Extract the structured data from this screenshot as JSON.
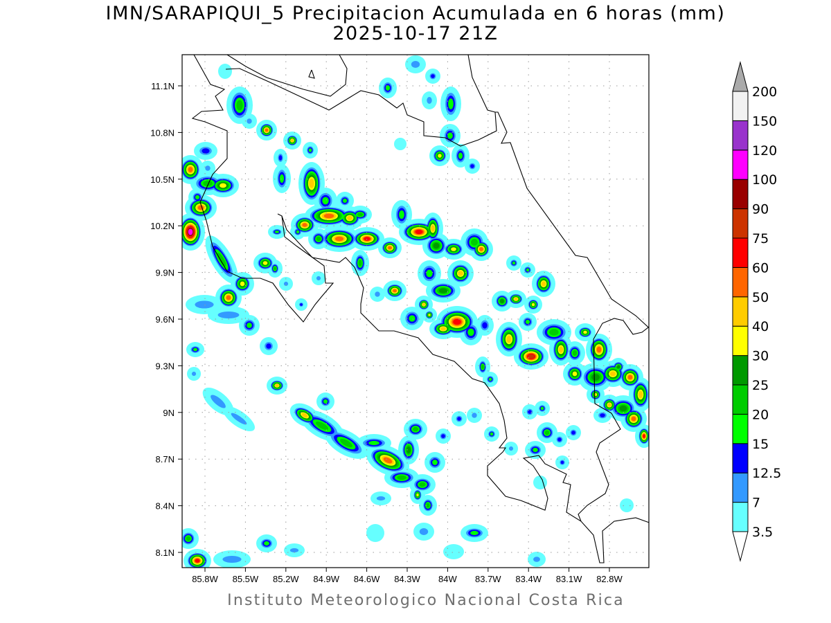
{
  "title": {
    "line1": "IMN/SARAPIQUI_5 Precipitacion Acumulada en 6 horas (mm)",
    "line2": "2025-10-17 21Z"
  },
  "footer": "Instituto Meteorologico Nacional Costa Rica",
  "map": {
    "lon_ticks": [
      "85.8W",
      "85.5W",
      "85.2W",
      "84.9W",
      "84.6W",
      "84.3W",
      "84W",
      "83.7W",
      "83.4W",
      "83.1W",
      "82.8W"
    ],
    "lat_ticks": [
      "11.1N",
      "10.8N",
      "10.5N",
      "10.2N",
      "9.9N",
      "9.6N",
      "9.3N",
      "9N",
      "8.7N",
      "8.4N",
      "8.1N"
    ]
  },
  "colorbar": {
    "units": "mm",
    "labels": [
      "3.5",
      "7",
      "12.5",
      "15",
      "20",
      "25",
      "30",
      "40",
      "50",
      "60",
      "75",
      "90",
      "100",
      "120",
      "150",
      "200"
    ],
    "colors": [
      "#66ffff",
      "#3399ff",
      "#0000ff",
      "#00ff00",
      "#00cc00",
      "#009900",
      "#ffff00",
      "#ffcc00",
      "#ff6600",
      "#ff0000",
      "#cc3300",
      "#990000",
      "#ff00ff",
      "#9933cc",
      "#f2f2f2"
    ],
    "over_color": "#aaaaaa",
    "under_color": "#ffffff"
  }
}
